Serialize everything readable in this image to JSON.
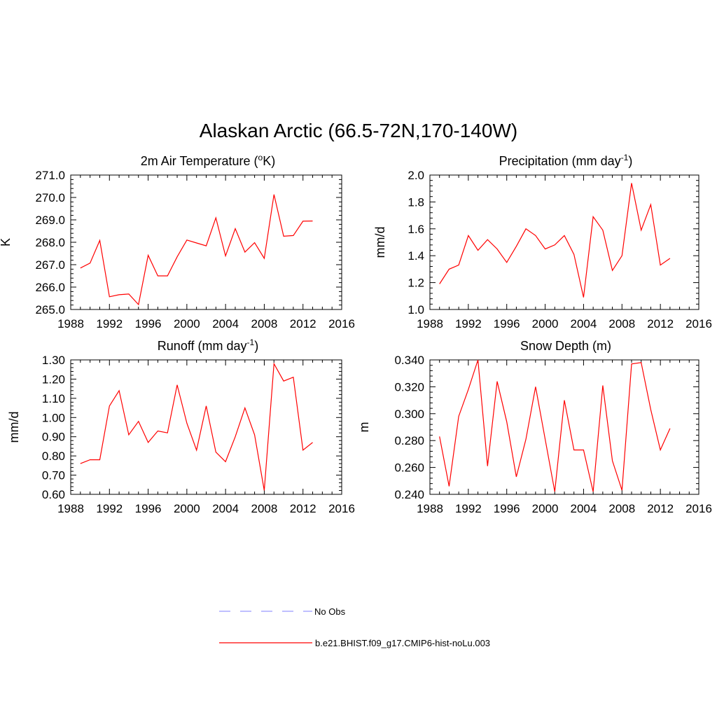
{
  "figure_title": "Alaskan Arctic (66.5-72N,170-140W)",
  "legend": [
    {
      "label": "No Obs",
      "color": "#9999ff",
      "dashed": true
    },
    {
      "label": "b.e21.BHIST.f09_g17.CMIP6-hist-noLu.003",
      "color": "#ff0000",
      "dashed": false
    }
  ],
  "chart_data": [
    {
      "type": "line",
      "title": "2m Air Temperature (oK)",
      "title_parts": [
        [
          "2m Air Temperature (",
          ""
        ],
        [
          "o",
          "sup"
        ],
        [
          "K)",
          ""
        ]
      ],
      "ylabel": "K",
      "xlabel": "",
      "xlim": [
        1988,
        2016
      ],
      "ylim": [
        265.0,
        271.0
      ],
      "xticks": [
        1988,
        1992,
        1996,
        2000,
        2004,
        2008,
        2012,
        2016
      ],
      "yticks": [
        265.0,
        266.0,
        267.0,
        268.0,
        269.0,
        270.0,
        271.0
      ],
      "ytick_decimals": 1,
      "grid": false,
      "series": [
        {
          "color": "#ff0000",
          "x": [
            1989,
            1990,
            1991,
            1992,
            1993,
            1994,
            1995,
            1996,
            1997,
            1998,
            1999,
            2000,
            2001,
            2002,
            2003,
            2004,
            2005,
            2006,
            2007,
            2008,
            2009,
            2010,
            2011,
            2012,
            2013
          ],
          "values": [
            266.85,
            267.07,
            268.08,
            265.57,
            265.66,
            265.69,
            265.22,
            267.42,
            266.5,
            266.5,
            267.35,
            268.1,
            267.97,
            267.84,
            269.09,
            267.39,
            268.61,
            267.56,
            267.98,
            267.28,
            270.13,
            268.27,
            268.3,
            268.94,
            268.95
          ]
        }
      ]
    },
    {
      "type": "line",
      "title": "Precipitation (mm day-1)",
      "title_parts": [
        [
          "Precipitation (mm day",
          ""
        ],
        [
          "-1",
          "sup"
        ],
        [
          ")",
          ""
        ]
      ],
      "ylabel": "mm/d",
      "xlabel": "",
      "xlim": [
        1988,
        2016
      ],
      "ylim": [
        1.0,
        2.0
      ],
      "xticks": [
        1988,
        1992,
        1996,
        2000,
        2004,
        2008,
        2012,
        2016
      ],
      "yticks": [
        1.0,
        1.2,
        1.4,
        1.6,
        1.8,
        2.0
      ],
      "ytick_decimals": 1,
      "grid": false,
      "series": [
        {
          "color": "#ff0000",
          "x": [
            1989,
            1990,
            1991,
            1992,
            1993,
            1994,
            1995,
            1996,
            1997,
            1998,
            1999,
            2000,
            2001,
            2002,
            2003,
            2004,
            2005,
            2006,
            2007,
            2008,
            2009,
            2010,
            2011,
            2012,
            2013
          ],
          "values": [
            1.19,
            1.3,
            1.33,
            1.55,
            1.44,
            1.52,
            1.45,
            1.35,
            1.47,
            1.6,
            1.55,
            1.45,
            1.48,
            1.55,
            1.41,
            1.09,
            1.69,
            1.59,
            1.29,
            1.4,
            1.94,
            1.59,
            1.78,
            1.33,
            1.38
          ]
        }
      ]
    },
    {
      "type": "line",
      "title": "Runoff (mm day-1)",
      "title_parts": [
        [
          "Runoff (mm day",
          ""
        ],
        [
          "-1",
          "sup"
        ],
        [
          ")",
          ""
        ]
      ],
      "ylabel": "mm/d",
      "xlabel": "",
      "xlim": [
        1988,
        2016
      ],
      "ylim": [
        0.6,
        1.3
      ],
      "xticks": [
        1988,
        1992,
        1996,
        2000,
        2004,
        2008,
        2012,
        2016
      ],
      "yticks": [
        0.6,
        0.7,
        0.8,
        0.9,
        1.0,
        1.1,
        1.2,
        1.3
      ],
      "ytick_decimals": 2,
      "grid": false,
      "series": [
        {
          "color": "#ff0000",
          "x": [
            1989,
            1990,
            1991,
            1992,
            1993,
            1994,
            1995,
            1996,
            1997,
            1998,
            1999,
            2000,
            2001,
            2002,
            2003,
            2004,
            2005,
            2006,
            2007,
            2008,
            2009,
            2010,
            2011,
            2012,
            2013
          ],
          "values": [
            0.76,
            0.78,
            0.78,
            1.06,
            1.14,
            0.91,
            0.98,
            0.87,
            0.93,
            0.92,
            1.17,
            0.97,
            0.83,
            1.06,
            0.82,
            0.77,
            0.9,
            1.05,
            0.91,
            0.62,
            1.28,
            1.19,
            1.21,
            0.83,
            0.87
          ]
        }
      ]
    },
    {
      "type": "line",
      "title": "Snow Depth (m)",
      "title_parts": [
        [
          "Snow Depth (m)",
          ""
        ]
      ],
      "ylabel": "m",
      "xlabel": "",
      "xlim": [
        1988,
        2016
      ],
      "ylim": [
        0.24,
        0.34
      ],
      "xticks": [
        1988,
        1992,
        1996,
        2000,
        2004,
        2008,
        2012,
        2016
      ],
      "yticks": [
        0.24,
        0.26,
        0.28,
        0.3,
        0.32,
        0.34
      ],
      "ytick_decimals": 3,
      "grid": false,
      "series": [
        {
          "color": "#ff0000",
          "x": [
            1989,
            1990,
            1991,
            1992,
            1993,
            1994,
            1995,
            1996,
            1997,
            1998,
            1999,
            2000,
            2001,
            2002,
            2003,
            2004,
            2005,
            2006,
            2007,
            2008,
            2009,
            2010,
            2011,
            2012,
            2013
          ],
          "values": [
            0.283,
            0.246,
            0.298,
            0.318,
            0.34,
            0.261,
            0.324,
            0.294,
            0.253,
            0.281,
            0.32,
            0.281,
            0.242,
            0.31,
            0.273,
            0.273,
            0.242,
            0.321,
            0.265,
            0.243,
            0.337,
            0.338,
            0.303,
            0.273,
            0.289
          ]
        }
      ]
    }
  ]
}
